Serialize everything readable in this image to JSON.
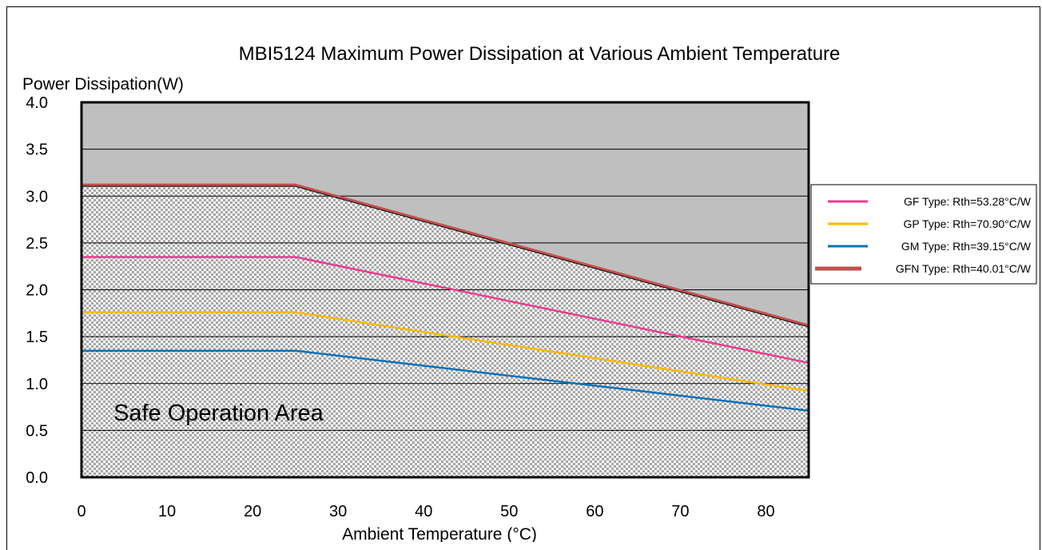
{
  "chart_data": {
    "type": "line",
    "title": "MBI5124 Maximum Power Dissipation at Various Ambient Temperature",
    "xlabel": "Ambient Temperature (°C)",
    "ylabel": "Power Dissipation(W)",
    "xlim": [
      0,
      85
    ],
    "ylim": [
      0,
      4.0
    ],
    "x_ticks": [
      "0",
      "10",
      "20",
      "30",
      "40",
      "50",
      "60",
      "70",
      "80"
    ],
    "y_ticks": [
      "0.0",
      "0.5",
      "1.0",
      "1.5",
      "2.0",
      "2.5",
      "3.0",
      "3.5",
      "4.0"
    ],
    "grid": true,
    "legend_position": "right",
    "annotation": "Safe Operation Area",
    "series": [
      {
        "name": "GF Type: Rth=53.28°C/W",
        "color": "#ef3a8f",
        "x": [
          0,
          25,
          85
        ],
        "values": [
          2.35,
          2.35,
          1.22
        ]
      },
      {
        "name": "GP Type: Rth=70.90°C/W",
        "color": "#fbba00",
        "x": [
          0,
          25,
          85
        ],
        "values": [
          1.76,
          1.76,
          0.92
        ]
      },
      {
        "name": "GM Type: Rth=39.15°C/W",
        "color": "#0b71b9",
        "x": [
          0,
          25,
          85
        ],
        "values": [
          1.35,
          1.35,
          0.71
        ]
      },
      {
        "name": "GFN Type: Rth=40.01°C/W",
        "color": "#c0504d",
        "x": [
          0,
          25,
          85
        ],
        "values": [
          3.12,
          3.12,
          1.62
        ]
      }
    ]
  }
}
